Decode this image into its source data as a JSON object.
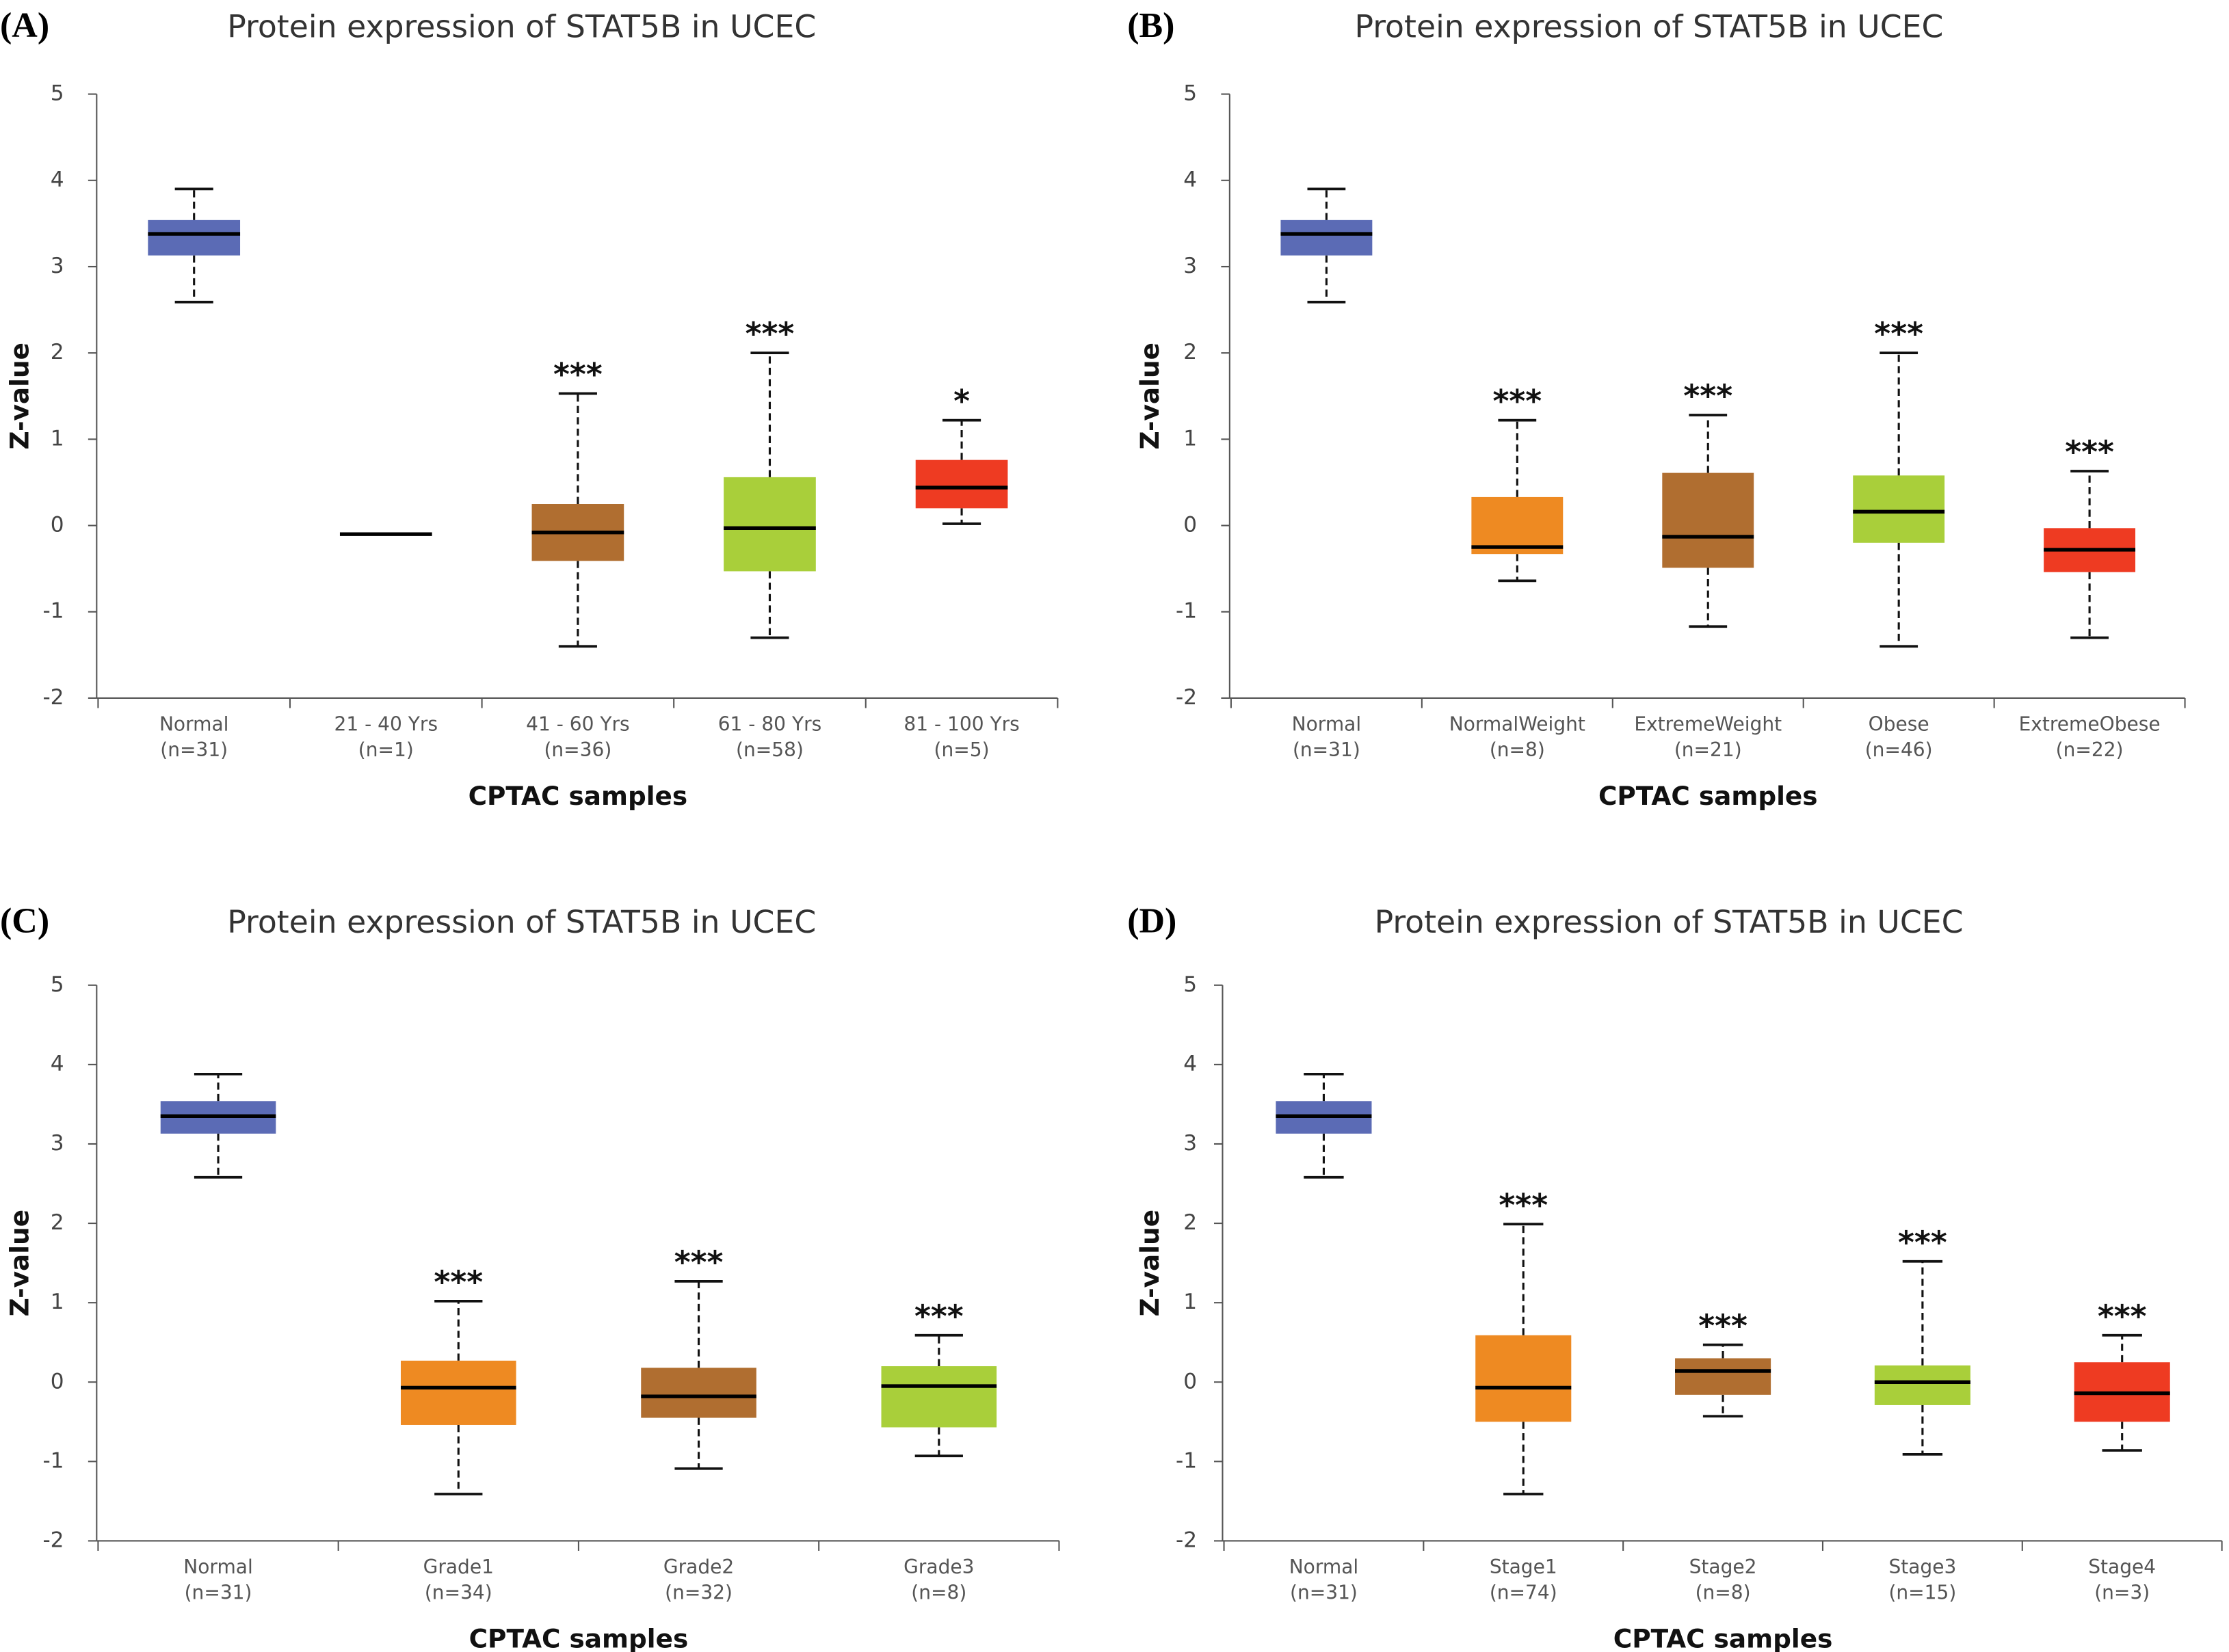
{
  "chart_data": [
    {
      "type": "box",
      "panel": "(A)",
      "title": "Protein expression of STAT5B in UCEC",
      "ylabel": "Z-value",
      "xlabel": "CPTAC samples",
      "categories": [
        "Normal",
        "21 - 40 Yrs",
        "41 - 60 Yrs",
        "61 - 80 Yrs",
        "81 - 100 Yrs"
      ],
      "sample_sizes": [
        "(n=31)",
        "(n=1)",
        "(n=36)",
        "(n=58)",
        "(n=5)"
      ],
      "colors": [
        "#5b6bb5",
        "#ee8a22",
        "#b06e30",
        "#a9cf3a",
        "#ee3b22"
      ],
      "boxes": [
        {
          "min": 2.59,
          "q1": 3.13,
          "median": 3.38,
          "q3": 3.54,
          "max": 3.9
        },
        {
          "min": -0.1,
          "q1": -0.1,
          "median": -0.1,
          "q3": -0.1,
          "max": -0.1
        },
        {
          "min": -1.4,
          "q1": -0.41,
          "median": -0.08,
          "q3": 0.25,
          "max": 1.53
        },
        {
          "min": -1.3,
          "q1": -0.53,
          "median": -0.03,
          "q3": 0.56,
          "max": 2.0
        },
        {
          "min": 0.02,
          "q1": 0.2,
          "median": 0.44,
          "q3": 0.76,
          "max": 1.22
        }
      ],
      "annotations": [
        null,
        null,
        "***",
        "***",
        "*"
      ],
      "ylim": [
        -2,
        5
      ],
      "yticks": [
        -2,
        -1,
        0,
        1,
        2,
        3,
        4,
        5
      ]
    },
    {
      "type": "box",
      "panel": "(B)",
      "title": "Protein expression of STAT5B in UCEC",
      "ylabel": "Z-value",
      "xlabel": "CPTAC samples",
      "categories": [
        "Normal",
        "NormalWeight",
        "ExtremeWeight",
        "Obese",
        "ExtremeObese"
      ],
      "sample_sizes": [
        "(n=31)",
        "(n=8)",
        "(n=21)",
        "(n=46)",
        "(n=22)"
      ],
      "colors": [
        "#5b6bb5",
        "#ee8a22",
        "#b06e30",
        "#a9cf3a",
        "#ee3b22"
      ],
      "boxes": [
        {
          "min": 2.59,
          "q1": 3.13,
          "median": 3.38,
          "q3": 3.54,
          "max": 3.9
        },
        {
          "min": -0.64,
          "q1": -0.33,
          "median": -0.25,
          "q3": 0.33,
          "max": 1.22
        },
        {
          "min": -1.17,
          "q1": -0.49,
          "median": -0.13,
          "q3": 0.61,
          "max": 1.28
        },
        {
          "min": -1.4,
          "q1": -0.2,
          "median": 0.16,
          "q3": 0.58,
          "max": 2.0
        },
        {
          "min": -1.3,
          "q1": -0.54,
          "median": -0.28,
          "q3": -0.03,
          "max": 0.63
        }
      ],
      "annotations": [
        null,
        "***",
        "***",
        "***",
        "***"
      ],
      "ylim": [
        -2,
        5
      ],
      "yticks": [
        -2,
        -1,
        0,
        1,
        2,
        3,
        4,
        5
      ]
    },
    {
      "type": "box",
      "panel": "(C)",
      "title": "Protein expression of STAT5B in UCEC",
      "ylabel": "Z-value",
      "xlabel": "CPTAC samples",
      "categories": [
        "Normal",
        "Grade1",
        "Grade2",
        "Grade3"
      ],
      "sample_sizes": [
        "(n=31)",
        "(n=34)",
        "(n=32)",
        "(n=8)"
      ],
      "colors": [
        "#5b6bb5",
        "#ee8a22",
        "#b06e30",
        "#a9cf3a"
      ],
      "boxes": [
        {
          "min": 2.58,
          "q1": 3.13,
          "median": 3.35,
          "q3": 3.54,
          "max": 3.88
        },
        {
          "min": -1.41,
          "q1": -0.54,
          "median": -0.07,
          "q3": 0.27,
          "max": 1.02
        },
        {
          "min": -1.09,
          "q1": -0.45,
          "median": -0.18,
          "q3": 0.18,
          "max": 1.27
        },
        {
          "min": -0.93,
          "q1": -0.57,
          "median": -0.05,
          "q3": 0.2,
          "max": 0.59
        }
      ],
      "annotations": [
        null,
        "***",
        "***",
        "***"
      ],
      "ylim": [
        -2,
        5
      ],
      "yticks": [
        -2,
        -1,
        0,
        1,
        2,
        3,
        4,
        5
      ]
    },
    {
      "type": "box",
      "panel": "(D)",
      "title": "Protein expression of STAT5B in UCEC",
      "ylabel": "Z-value",
      "xlabel": "CPTAC samples",
      "categories": [
        "Normal",
        "Stage1",
        "Stage2",
        "Stage3",
        "Stage4"
      ],
      "sample_sizes": [
        "(n=31)",
        "(n=74)",
        "(n=8)",
        "(n=15)",
        "(n=3)"
      ],
      "colors": [
        "#5b6bb5",
        "#ee8a22",
        "#b06e30",
        "#a9cf3a",
        "#ee3b22"
      ],
      "boxes": [
        {
          "min": 2.58,
          "q1": 3.13,
          "median": 3.35,
          "q3": 3.54,
          "max": 3.88
        },
        {
          "min": -1.41,
          "q1": -0.5,
          "median": -0.07,
          "q3": 0.59,
          "max": 1.99
        },
        {
          "min": -0.43,
          "q1": -0.16,
          "median": 0.14,
          "q3": 0.3,
          "max": 0.47
        },
        {
          "min": -0.91,
          "q1": -0.29,
          "median": 0,
          "q3": 0.21,
          "max": 1.52
        },
        {
          "min": -0.86,
          "q1": -0.5,
          "median": -0.14,
          "q3": 0.25,
          "max": 0.59
        }
      ],
      "annotations": [
        null,
        "***",
        "***",
        "***",
        "***"
      ],
      "ylim": [
        -2,
        5
      ],
      "yticks": [
        -2,
        -1,
        0,
        1,
        2,
        3,
        4,
        5
      ]
    }
  ]
}
